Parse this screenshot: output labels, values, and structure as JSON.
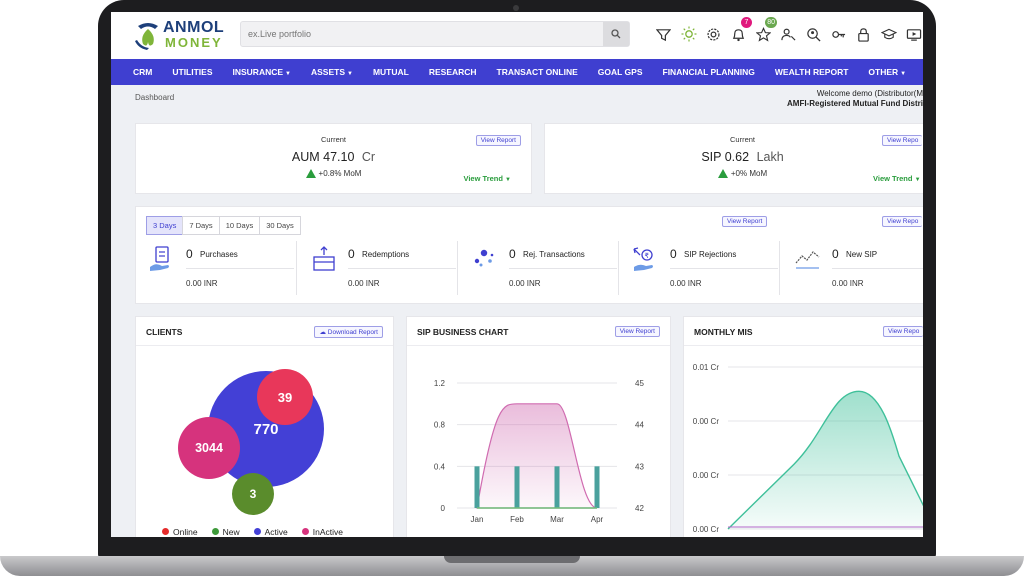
{
  "header": {
    "logo_line1": "ANMOL",
    "logo_line2": "MONEY",
    "search_placeholder": "ex.Live portfolio",
    "icons": [
      {
        "name": "filter-icon",
        "badge": ""
      },
      {
        "name": "bulb-icon",
        "badge": ""
      },
      {
        "name": "gear-icon",
        "badge": ""
      },
      {
        "name": "bell-icon",
        "badge": "7",
        "badge_color": "#e0197d"
      },
      {
        "name": "star-icon",
        "badge": "80",
        "badge_color": "#6aa84f"
      },
      {
        "name": "user-gear-icon",
        "badge": ""
      },
      {
        "name": "user-search-icon",
        "badge": ""
      },
      {
        "name": "key-icon",
        "badge": ""
      },
      {
        "name": "lock-icon",
        "badge": ""
      },
      {
        "name": "graduation-cap-icon",
        "badge": ""
      },
      {
        "name": "video-icon",
        "badge": ""
      }
    ]
  },
  "nav": {
    "items": [
      {
        "label": "CRM",
        "dropdown": false
      },
      {
        "label": "UTILITIES",
        "dropdown": false
      },
      {
        "label": "INSURANCE",
        "dropdown": true
      },
      {
        "label": "ASSETS",
        "dropdown": true
      },
      {
        "label": "MUTUAL",
        "dropdown": false
      },
      {
        "label": "RESEARCH",
        "dropdown": false
      },
      {
        "label": "TRANSACT ONLINE",
        "dropdown": false
      },
      {
        "label": "GOAL GPS",
        "dropdown": false
      },
      {
        "label": "FINANCIAL PLANNING",
        "dropdown": false
      },
      {
        "label": "WEALTH REPORT",
        "dropdown": false
      },
      {
        "label": "OTHER",
        "dropdown": true
      }
    ]
  },
  "breadcrumb": "Dashboard",
  "welcome": {
    "line1": "Welcome demo (Distributor(M",
    "line2": "AMFI-Registered Mutual Fund Distri"
  },
  "aum": {
    "label": "Current",
    "name": "AUM",
    "value": "47.10",
    "unit": "Cr",
    "mom": "+0.8% MoM",
    "view_report": "View Report",
    "view_trend": "View Trend"
  },
  "sip": {
    "label": "Current",
    "name": "SIP",
    "value": "0.62",
    "unit": "Lakh",
    "mom": "+0% MoM",
    "view_report": "View Repo",
    "view_trend": "View Trend"
  },
  "transactions": {
    "tabs": [
      "3 Days",
      "7 Days",
      "10 Days",
      "30 Days"
    ],
    "active_tab": "3 Days",
    "view_report_1": "View Report",
    "view_report_2": "View Repo",
    "items": [
      {
        "count": "0",
        "name": "Purchases",
        "amount": "0.00 INR",
        "icon": "purchase-icon"
      },
      {
        "count": "0",
        "name": "Redemptions",
        "amount": "0.00 INR",
        "icon": "redemption-icon"
      },
      {
        "count": "0",
        "name": "Rej. Transactions",
        "amount": "0.00 INR",
        "icon": "rejected-transaction-icon"
      },
      {
        "count": "0",
        "name": "SIP Rejections",
        "amount": "0.00 INR",
        "icon": "sip-rejection-icon"
      },
      {
        "count": "0",
        "name": "New SIP",
        "amount": "0.00 INR",
        "icon": "new-sip-icon"
      }
    ]
  },
  "clients": {
    "title": "CLIENTS",
    "download": "Download Report",
    "bubbles": {
      "active": "770",
      "new_red": "39",
      "inactive": "3044",
      "new": "3"
    },
    "legend": [
      {
        "label": "Online",
        "color": "#e52b2b"
      },
      {
        "label": "New",
        "color": "#3e9a3a"
      },
      {
        "label": "Active",
        "color": "#4340d6"
      },
      {
        "label": "InActive",
        "color": "#d6337d"
      }
    ]
  },
  "sip_chart": {
    "title": "SIP BUSINESS CHART",
    "view_report": "View Report"
  },
  "mis": {
    "title": "MONTHLY MIS",
    "view_report": "View Repo"
  },
  "chart_data": [
    {
      "type": "bar",
      "title": "SIP BUSINESS CHART",
      "categories": [
        "Jan",
        "Feb",
        "Mar",
        "Apr"
      ],
      "y_left_ticks": [
        "0",
        "0.4",
        "0.8",
        "1.2"
      ],
      "y_right_ticks": [
        "42",
        "43",
        "44",
        "45"
      ],
      "ylim_left": [
        0,
        1.2
      ],
      "ylim_right": [
        42,
        45
      ],
      "series": [
        {
          "kind": "bar",
          "axis": "left",
          "values": [
            0.4,
            0.4,
            0.4,
            0.4
          ],
          "color": "#4aa19d"
        },
        {
          "kind": "area",
          "axis": "left",
          "values": [
            0,
            1.0,
            1.0,
            0
          ],
          "color": "#d06bb0"
        },
        {
          "kind": "line",
          "axis": "right",
          "values": [
            42,
            42,
            42,
            42
          ],
          "color": "#6fbf7a"
        }
      ]
    },
    {
      "type": "area",
      "title": "MONTHLY MIS",
      "y_ticks": [
        "0.00 Cr",
        "0.00 Cr",
        "0.00 Cr",
        "0.01 Cr"
      ],
      "series": [
        {
          "kind": "area",
          "values": [
            0,
            0.004,
            0.0085,
            0.0045,
            0
          ],
          "color": "#3fc09a"
        }
      ]
    }
  ]
}
